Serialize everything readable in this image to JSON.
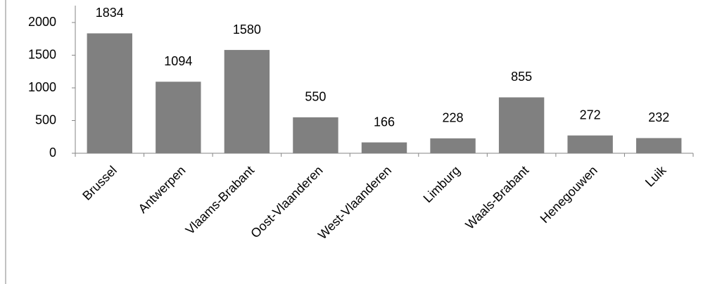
{
  "chart_data": {
    "type": "bar",
    "categories": [
      "Brussel",
      "Antwerpen",
      "Vlaams-Brabant",
      "Oost-Vlaanderen",
      "West-Vlaanderen",
      "Limburg",
      "Waals-Brabant",
      "Henegouwen",
      "Luik"
    ],
    "values": [
      1834,
      1094,
      1580,
      550,
      166,
      228,
      855,
      272,
      232
    ],
    "color": "#808080",
    "ylim": [
      0,
      2000
    ],
    "yticks": [
      0,
      500,
      1000,
      1500,
      2000
    ],
    "grid": false
  }
}
